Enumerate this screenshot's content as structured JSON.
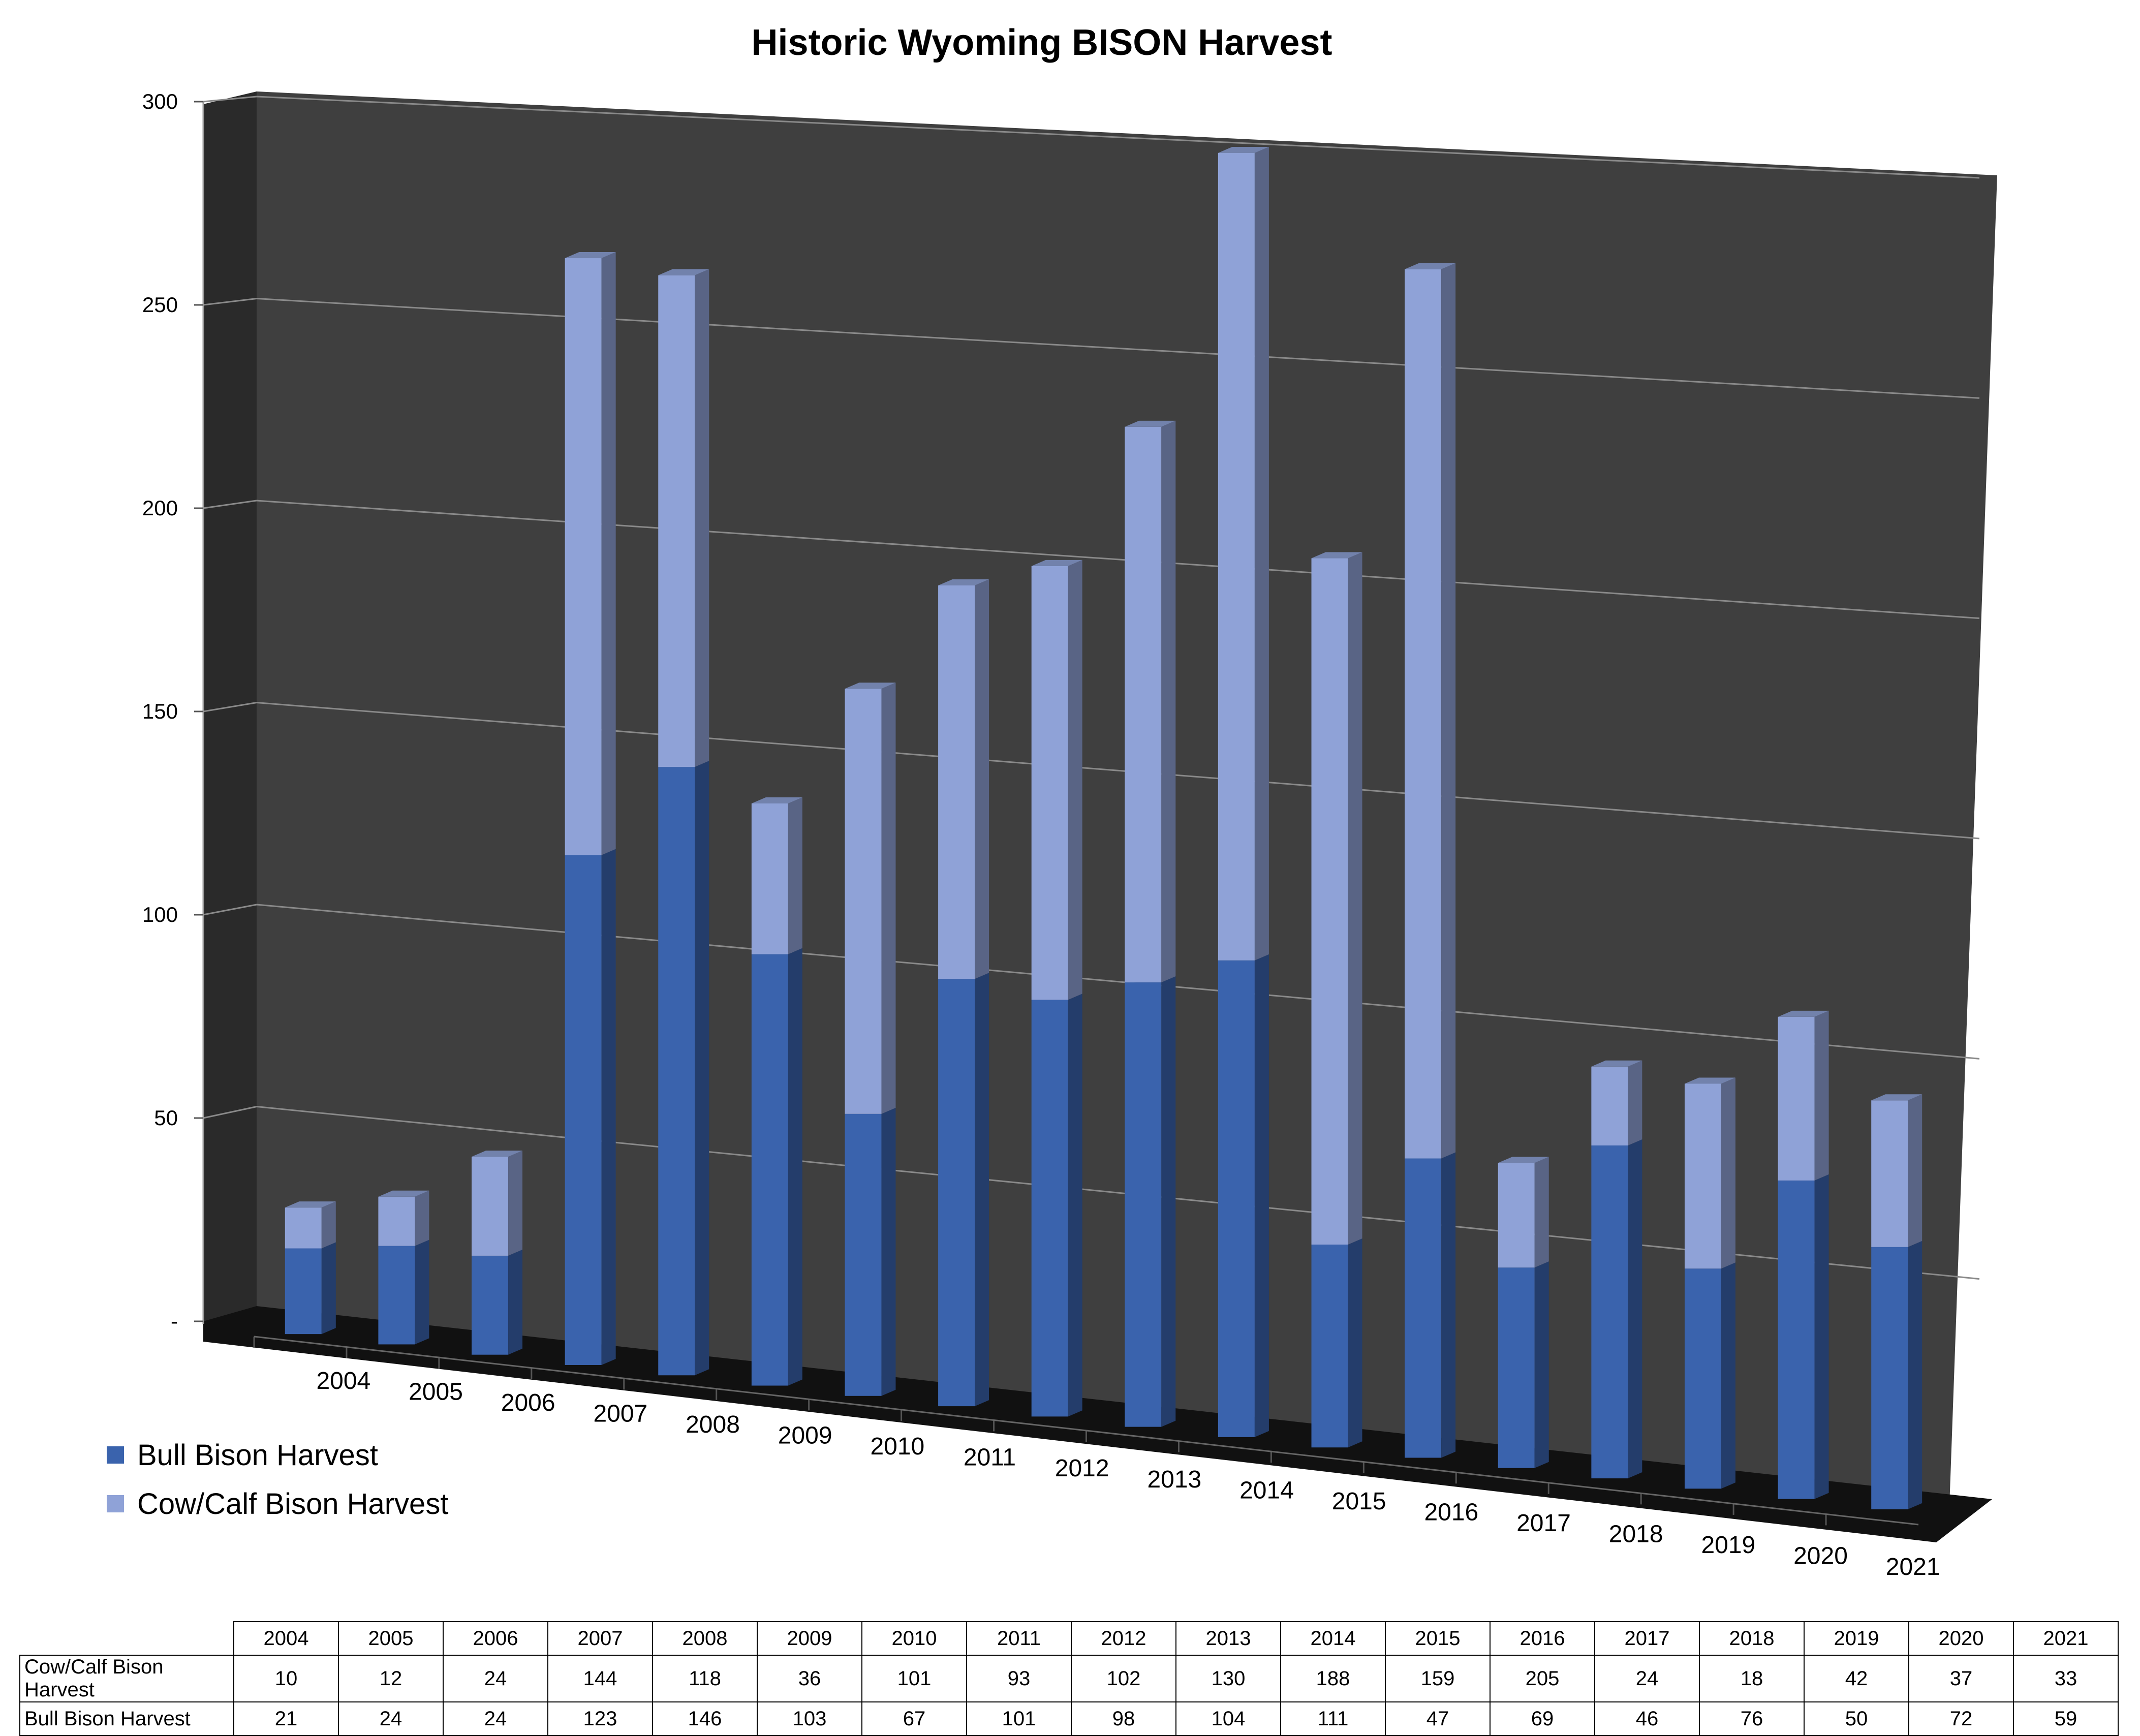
{
  "chart_data": {
    "type": "bar",
    "stacked": true,
    "three_d": true,
    "title": "Historic Wyoming BISON Harvest",
    "categories": [
      "2004",
      "2005",
      "2006",
      "2007",
      "2008",
      "2009",
      "2010",
      "2011",
      "2012",
      "2013",
      "2014",
      "2015",
      "2016",
      "2017",
      "2018",
      "2019",
      "2020",
      "2021"
    ],
    "series": [
      {
        "name": "Bull Bison Harvest",
        "color": "#3a63ad",
        "values": [
          21,
          24,
          24,
          123,
          146,
          103,
          67,
          101,
          98,
          104,
          111,
          47,
          69,
          46,
          76,
          50,
          72,
          59
        ]
      },
      {
        "name": "Cow/Calf Bison Harvest",
        "color": "#8fa2d7",
        "values": [
          10,
          12,
          24,
          144,
          118,
          36,
          101,
          93,
          102,
          130,
          188,
          159,
          205,
          24,
          18,
          42,
          37,
          33
        ]
      }
    ],
    "ylim": [
      0,
      300
    ],
    "yticks": [
      "-",
      "50",
      "100",
      "150",
      "200",
      "250",
      "300"
    ],
    "grid": true,
    "wall_color": "#3f3f3f",
    "legend": "bottom-left",
    "table": {
      "rows": [
        {
          "label": "Cow/Calf Bison Harvest",
          "series": 1
        },
        {
          "label": "Bull Bison Harvest",
          "series": 0
        }
      ]
    }
  }
}
